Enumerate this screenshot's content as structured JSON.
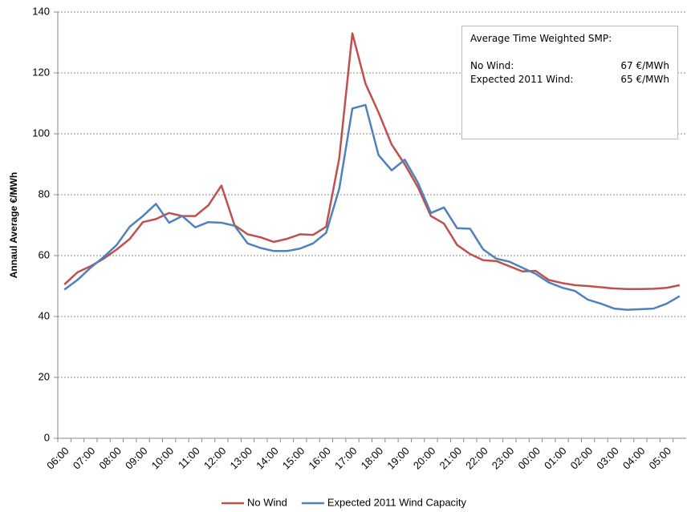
{
  "chart_data": {
    "type": "line",
    "y_label": "Annaul Average €/MWh",
    "categories": [
      "06:00",
      null,
      "07:00",
      null,
      "08:00",
      null,
      "09:00",
      null,
      "10:00",
      null,
      "11:00",
      null,
      "12:00",
      null,
      "13:00",
      null,
      "14:00",
      null,
      "15:00",
      null,
      "16:00",
      null,
      "17:00",
      null,
      "18:00",
      null,
      "19:00",
      null,
      "20:00",
      null,
      "21:00",
      null,
      "22:00",
      null,
      "23:00",
      null,
      "00:00",
      null,
      "01:00",
      null,
      "02:00",
      null,
      "03:00",
      null,
      "04:00",
      null,
      "05:00",
      null
    ],
    "series": [
      {
        "name": "No Wind",
        "color": "#c0504d",
        "values": [
          50.5,
          54.5,
          56.5,
          59,
          62,
          65.5,
          71,
          72,
          74,
          73,
          73,
          76.5,
          83,
          70,
          67,
          66,
          64.5,
          65.5,
          67,
          66.8,
          69.5,
          92,
          133,
          116.5,
          107,
          96.5,
          90,
          82.5,
          73,
          70.5,
          63.5,
          60.5,
          58.5,
          58.2,
          56.5,
          54.8,
          55,
          52,
          51,
          50.3,
          50,
          49.6,
          49.2,
          49,
          49,
          49.1,
          49.4,
          50.3
        ]
      },
      {
        "name": "Expected 2011 Wind Capacity",
        "color": "#4f81bd",
        "values": [
          48.8,
          52,
          56,
          59.5,
          63.5,
          69.5,
          73,
          77,
          70.8,
          73,
          69.3,
          71,
          70.8,
          69.8,
          64,
          62.5,
          61.5,
          61.5,
          62.3,
          64,
          67.5,
          82,
          108.3,
          109.5,
          93,
          88,
          91.5,
          84,
          74,
          75.8,
          69,
          68.8,
          62,
          59,
          58,
          56,
          54,
          51.2,
          49.5,
          48.4,
          45.5,
          44.2,
          42.6,
          42.2,
          42.4,
          42.6,
          44.2,
          46.7
        ]
      }
    ],
    "ylim": [
      0,
      140
    ],
    "yticks": [
      0,
      20,
      40,
      60,
      80,
      100,
      120,
      140
    ],
    "grid": true,
    "annotation": {
      "title": "Average Time Weighted SMP:",
      "rows": [
        [
          "No Wind:",
          "67 €/MWh"
        ],
        [
          "Expected 2011 Wind:",
          "65 €/MWh"
        ]
      ]
    }
  }
}
